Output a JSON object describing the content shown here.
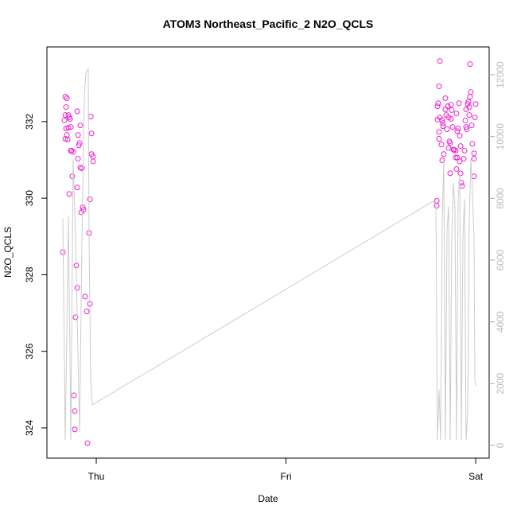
{
  "chart_data": {
    "type": "scatter",
    "title": "ATOM3 Northeast_Pacific_2 N2O_QCLS",
    "x_label": "Date",
    "y_label": "N2O_QCLS",
    "xlim": [
      -6.24,
      49.7
    ],
    "xticks": [
      {
        "value": 0,
        "label": "Thu"
      },
      {
        "value": 24,
        "label": "Fri"
      },
      {
        "value": 48,
        "label": "Sat"
      }
    ],
    "ylim": [
      323.21,
      333.95
    ],
    "yticks": [
      324,
      326,
      328,
      330,
      332
    ],
    "y2lim": [
      -412,
      12902
    ],
    "y2ticks": [
      0,
      2000,
      4000,
      6000,
      8000,
      10000,
      12000
    ],
    "series": [
      {
        "type": "scatter",
        "color": "#ee22cc",
        "x": [
          -4.23,
          -3.92,
          -3.72,
          -3.82,
          -3.92,
          -3.52,
          -3.32,
          -3.42,
          -4.02,
          -3.82,
          -3.52,
          -3.22,
          -3.72,
          -3.92,
          -3.62,
          -3.12,
          -2.92,
          -3.22,
          -3.02,
          -3.42,
          -2.41,
          -2.31,
          -2.01,
          -2.11,
          -2.21,
          -2.31,
          -2.01,
          -1.81,
          -2.41,
          -1.71,
          -1.61,
          -1.91,
          -2.52,
          -2.41,
          -2.62,
          -1.41,
          -1.21,
          -0.8,
          -0.91,
          -0.8,
          -0.7,
          -0.6,
          -0.6,
          -0.4,
          -0.4,
          -2.82,
          -2.72,
          -2.72,
          -1.11,
          43.06,
          43.06,
          43.46,
          43.36,
          43.26,
          43.16,
          43.16,
          43.46,
          43.76,
          43.86,
          43.36,
          43.86,
          43.36,
          43.66,
          43.76,
          43.96,
          44.16,
          44.27,
          44.47,
          44.57,
          44.37,
          44.67,
          44.57,
          44.77,
          44.87,
          44.97,
          45.07,
          44.77,
          44.87,
          45.17,
          45.27,
          45.47,
          45.47,
          45.57,
          45.67,
          45.77,
          45.88,
          45.98,
          46.08,
          46.08,
          46.18,
          46.28,
          46.48,
          46.58,
          46.68,
          46.78,
          46.78,
          46.88,
          46.98,
          47.08,
          47.18,
          47.18,
          47.28,
          47.38,
          47.28,
          47.48,
          47.58,
          47.79,
          47.79,
          47.79,
          47.99,
          47.89,
          45.57,
          45.67,
          45.98,
          44.16
        ],
        "values": [
          328.59,
          332.65,
          332.61,
          332.38,
          332.17,
          332.17,
          332.07,
          332.11,
          332.03,
          331.82,
          331.84,
          331.86,
          331.65,
          331.55,
          331.53,
          331.24,
          331.21,
          331.24,
          330.57,
          330.11,
          332.27,
          331.65,
          331.9,
          331.44,
          331.38,
          331.03,
          330.8,
          330.78,
          330.28,
          329.76,
          329.7,
          329.63,
          328.24,
          327.66,
          326.89,
          327.43,
          327.04,
          327.24,
          329.09,
          329.97,
          332.13,
          331.69,
          331.15,
          331.09,
          330.96,
          324.85,
          324.44,
          323.96,
          323.6,
          329.93,
          329.8,
          333.58,
          332.92,
          332.48,
          332.4,
          332.05,
          332.11,
          332.03,
          331.96,
          331.73,
          331.88,
          331.55,
          331.4,
          330.99,
          331.15,
          332.32,
          332.17,
          332.4,
          332.11,
          331.8,
          331.48,
          331.31,
          331.44,
          332.44,
          332.3,
          331.86,
          330.65,
          332.07,
          331.27,
          331.26,
          331.24,
          331.06,
          332.21,
          331.75,
          331.82,
          332.48,
          331.63,
          331.36,
          330.65,
          330.4,
          330.32,
          331.03,
          331.24,
          332.03,
          332.32,
          331.86,
          331.8,
          332.46,
          332.52,
          332.38,
          332.17,
          332.65,
          332.77,
          333.5,
          331.9,
          331.42,
          331.17,
          331.03,
          330.57,
          332.46,
          332.11,
          330.76,
          331.06,
          330.96,
          332.61
        ]
      },
      {
        "type": "line",
        "axis": "y2",
        "color": "#cccccc",
        "x": [
          -4.23,
          -3.92,
          -3.52,
          -3.22,
          -2.92,
          -2.62,
          -2.41,
          -2.11,
          -1.81,
          -1.51,
          -1.31,
          -1.01,
          -0.91,
          -0.7,
          -0.5,
          42.96,
          43.16,
          43.36,
          43.56,
          43.76,
          43.96,
          44.16,
          44.37,
          44.57,
          44.77,
          44.97,
          45.17,
          45.37,
          45.57,
          45.77,
          45.98,
          46.18,
          46.38,
          46.58,
          46.78,
          46.98,
          47.18,
          47.38,
          47.58,
          47.79,
          47.89,
          48.09
        ],
        "values": [
          7365,
          180,
          7416,
          180,
          9270,
          6695,
          4120,
          438,
          6695,
          11330,
          12051,
          12206,
          6695,
          2060,
          1313,
          7957,
          180,
          1803,
          180,
          7210,
          9270,
          180,
          6953,
          7725,
          180,
          6695,
          8498,
          7725,
          180,
          7983,
          8755,
          180,
          6695,
          7983,
          180,
          1030,
          7210,
          9270,
          8240,
          6695,
          2060,
          1931
        ]
      }
    ]
  }
}
